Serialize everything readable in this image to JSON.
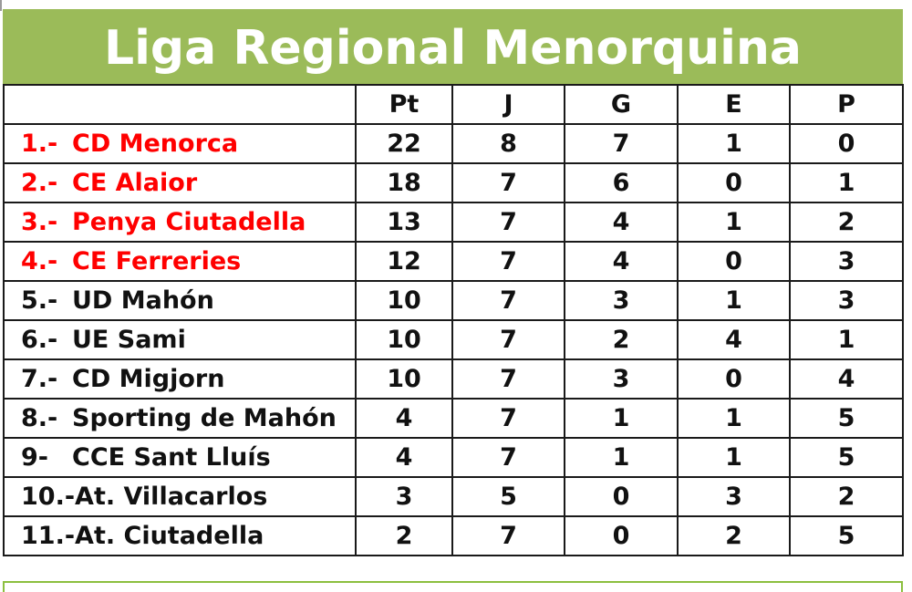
{
  "title": "Liga Regional Menorquina",
  "colors": {
    "title_band": "#9bbb59",
    "title_text": "#ffffff",
    "highlight_team": "#ff0000",
    "text": "#111111",
    "grid": "#1a1a1a",
    "bottom_border": "#8cbf3f"
  },
  "table": {
    "headers": [
      "",
      "Pt",
      "J",
      "G",
      "E",
      "P"
    ],
    "rows": [
      {
        "pos": "1.-",
        "team": "CD Menorca",
        "pt": "22",
        "j": "8",
        "g": "7",
        "e": "1",
        "p": "0",
        "highlight": true
      },
      {
        "pos": "2.-",
        "team": "CE Alaior",
        "pt": "18",
        "j": "7",
        "g": "6",
        "e": "0",
        "p": "1",
        "highlight": true
      },
      {
        "pos": "3.-",
        "team": "Penya Ciutadella",
        "pt": "13",
        "j": "7",
        "g": "4",
        "e": "1",
        "p": "2",
        "highlight": true
      },
      {
        "pos": "4.-",
        "team": "CE Ferreries",
        "pt": "12",
        "j": "7",
        "g": "4",
        "e": "0",
        "p": "3",
        "highlight": true
      },
      {
        "pos": "5.-",
        "team": "UD Mahón",
        "pt": "10",
        "j": "7",
        "g": "3",
        "e": "1",
        "p": "3",
        "highlight": false
      },
      {
        "pos": "6.-",
        "team": "UE Sami",
        "pt": "10",
        "j": "7",
        "g": "2",
        "e": "4",
        "p": "1",
        "highlight": false
      },
      {
        "pos": "7.-",
        "team": "CD Migjorn",
        "pt": "10",
        "j": "7",
        "g": "3",
        "e": "0",
        "p": "4",
        "highlight": false
      },
      {
        "pos": "8.-",
        "team": "Sporting de Mahón",
        "pt": "4",
        "j": "7",
        "g": "1",
        "e": "1",
        "p": "5",
        "highlight": false
      },
      {
        "pos": "9-",
        "team": "CCE Sant Lluís",
        "pt": "4",
        "j": "7",
        "g": "1",
        "e": "1",
        "p": "5",
        "highlight": false
      },
      {
        "pos": "10.-",
        "team": "At. Villacarlos",
        "pt": "3",
        "j": "5",
        "g": "0",
        "e": "3",
        "p": "2",
        "highlight": false
      },
      {
        "pos": "11.-",
        "team": "At. Ciutadella",
        "pt": "2",
        "j": "7",
        "g": "0",
        "e": "2",
        "p": "5",
        "highlight": false
      }
    ]
  }
}
